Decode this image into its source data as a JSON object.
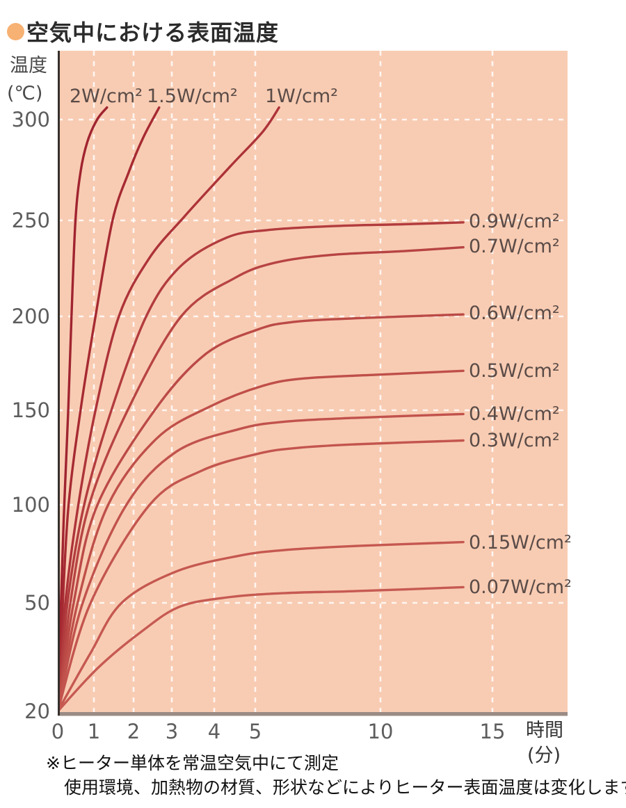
{
  "title": {
    "bullet_icon": "orange-dot",
    "text": "空気中における表面温度"
  },
  "colors": {
    "plot_background": "#f8ccb3",
    "gridline": "#ffffff",
    "y_axis_line": "#35302d",
    "x_axis_line": "#9b8b85",
    "title_bullet": "#f6b173",
    "label_text": "#5a4b47",
    "tick_text": "#5d5d5d"
  },
  "chart_data": {
    "type": "line",
    "title": "空気中における表面温度",
    "xlabel": "時間",
    "xlabel_unit": "(分)",
    "ylabel": "温度",
    "ylabel_unit": "(℃)",
    "x_axis": {
      "ticks": [
        0,
        1,
        2,
        3,
        4,
        5,
        10,
        15
      ],
      "range_min": 0,
      "range_max": 18
    },
    "y_axis": {
      "ticks": [
        20,
        50,
        100,
        150,
        200,
        250,
        300
      ],
      "range_min": 20,
      "range_max": 310
    },
    "grid": "dashed-white-on-peach",
    "legend_position": "labels-at-curve-ends",
    "series": [
      {
        "label": "2W/cm²",
        "watt_density_w_per_cm2": 2,
        "color": "#a02430",
        "label_side": "top",
        "points": [
          [
            0,
            20
          ],
          [
            0.09,
            50
          ],
          [
            0.18,
            100
          ],
          [
            0.29,
            150
          ],
          [
            0.38,
            200
          ],
          [
            0.49,
            250
          ],
          [
            0.63,
            274
          ],
          [
            0.82,
            289
          ],
          [
            1.08,
            300
          ],
          [
            1.33,
            306
          ]
        ]
      },
      {
        "label": "1.5W/cm²",
        "watt_density_w_per_cm2": 1.5,
        "color": "#a62a32",
        "label_side": "top",
        "points": [
          [
            0,
            20
          ],
          [
            0.14,
            50
          ],
          [
            0.3,
            100
          ],
          [
            0.63,
            150
          ],
          [
            1.04,
            200
          ],
          [
            1.47,
            250
          ],
          [
            1.88,
            274
          ],
          [
            2.25,
            291
          ],
          [
            2.67,
            306
          ]
        ]
      },
      {
        "label": "1W/cm²",
        "watt_density_w_per_cm2": 1,
        "color": "#ad3339",
        "label_side": "top",
        "points": [
          [
            0,
            20
          ],
          [
            0.21,
            50
          ],
          [
            0.57,
            100
          ],
          [
            1.04,
            150
          ],
          [
            1.63,
            200
          ],
          [
            2.4,
            230
          ],
          [
            3.3,
            252
          ],
          [
            4.4,
            277
          ],
          [
            5.3,
            294
          ],
          [
            5.95,
            306
          ]
        ]
      },
      {
        "label": "0.9W/cm²",
        "watt_density_w_per_cm2": 0.9,
        "color": "#b23c3e",
        "label_side": "right",
        "points": [
          [
            0,
            20
          ],
          [
            0.27,
            50
          ],
          [
            0.73,
            100
          ],
          [
            1.44,
            150
          ],
          [
            2.33,
            200
          ],
          [
            3.2,
            226
          ],
          [
            4.3,
            241
          ],
          [
            5.5,
            245
          ],
          [
            8,
            247
          ],
          [
            11,
            248
          ],
          [
            13.7,
            249
          ]
        ]
      },
      {
        "label": "0.7W/cm²",
        "watt_density_w_per_cm2": 0.7,
        "color": "#b74442",
        "label_side": "right",
        "points": [
          [
            0,
            20
          ],
          [
            0.35,
            50
          ],
          [
            0.87,
            100
          ],
          [
            1.85,
            150
          ],
          [
            3.22,
            200
          ],
          [
            4.5,
            220
          ],
          [
            5.8,
            228
          ],
          [
            8,
            232
          ],
          [
            11,
            234
          ],
          [
            13.7,
            236
          ]
        ]
      },
      {
        "label": "0.6W/cm²",
        "watt_density_w_per_cm2": 0.6,
        "color": "#bb4a46",
        "label_side": "right",
        "points": [
          [
            0,
            20
          ],
          [
            0.44,
            50
          ],
          [
            1.09,
            100
          ],
          [
            2.55,
            150
          ],
          [
            3.8,
            180
          ],
          [
            5.1,
            193
          ],
          [
            6.5,
            197
          ],
          [
            9,
            199
          ],
          [
            13.7,
            201
          ]
        ]
      },
      {
        "label": "0.5W/cm²",
        "watt_density_w_per_cm2": 0.5,
        "color": "#bf4f49",
        "label_side": "right",
        "points": [
          [
            0,
            20
          ],
          [
            0.55,
            50
          ],
          [
            1.36,
            100
          ],
          [
            2.6,
            135
          ],
          [
            3.9,
            152
          ],
          [
            5.3,
            163
          ],
          [
            7,
            167
          ],
          [
            10,
            169
          ],
          [
            13.7,
            171
          ]
        ]
      },
      {
        "label": "0.4W/cm²",
        "watt_density_w_per_cm2": 0.4,
        "color": "#c1524c",
        "label_side": "right",
        "points": [
          [
            0,
            20
          ],
          [
            0.69,
            50
          ],
          [
            1.82,
            100
          ],
          [
            3.1,
            128
          ],
          [
            4.6,
            140
          ],
          [
            6.2,
            144
          ],
          [
            9,
            146
          ],
          [
            13.7,
            148
          ]
        ]
      },
      {
        "label": "0.3W/cm²",
        "watt_density_w_per_cm2": 0.3,
        "color": "#c3554e",
        "label_side": "right",
        "points": [
          [
            0,
            20
          ],
          [
            0.91,
            50
          ],
          [
            2.42,
            100
          ],
          [
            3.7,
            118
          ],
          [
            5.1,
            127
          ],
          [
            6.6,
            130
          ],
          [
            9,
            132
          ],
          [
            13.7,
            134
          ]
        ]
      },
      {
        "label": "0.15W/cm²",
        "watt_density_w_per_cm2": 0.15,
        "color": "#c55850",
        "label_side": "right",
        "points": [
          [
            0,
            20
          ],
          [
            0.9,
            36
          ],
          [
            1.7,
            50
          ],
          [
            3.1,
            66
          ],
          [
            4.6,
            74
          ],
          [
            6.2,
            77
          ],
          [
            9,
            79
          ],
          [
            13.7,
            81
          ]
        ]
      },
      {
        "label": "0.07W/cm²",
        "watt_density_w_per_cm2": 0.07,
        "color": "#c65a52",
        "label_side": "right",
        "points": [
          [
            0,
            20
          ],
          [
            1.1,
            32
          ],
          [
            2.2,
            42
          ],
          [
            3.2,
            49
          ],
          [
            4.4,
            53
          ],
          [
            6.2,
            55
          ],
          [
            9,
            56
          ],
          [
            13.7,
            58
          ]
        ]
      }
    ],
    "notes": [
      "※ヒーター単体を常温空気中にて測定",
      "使用環境、加熱物の材質、形状などによりヒーター表面温度は変化します。"
    ]
  }
}
